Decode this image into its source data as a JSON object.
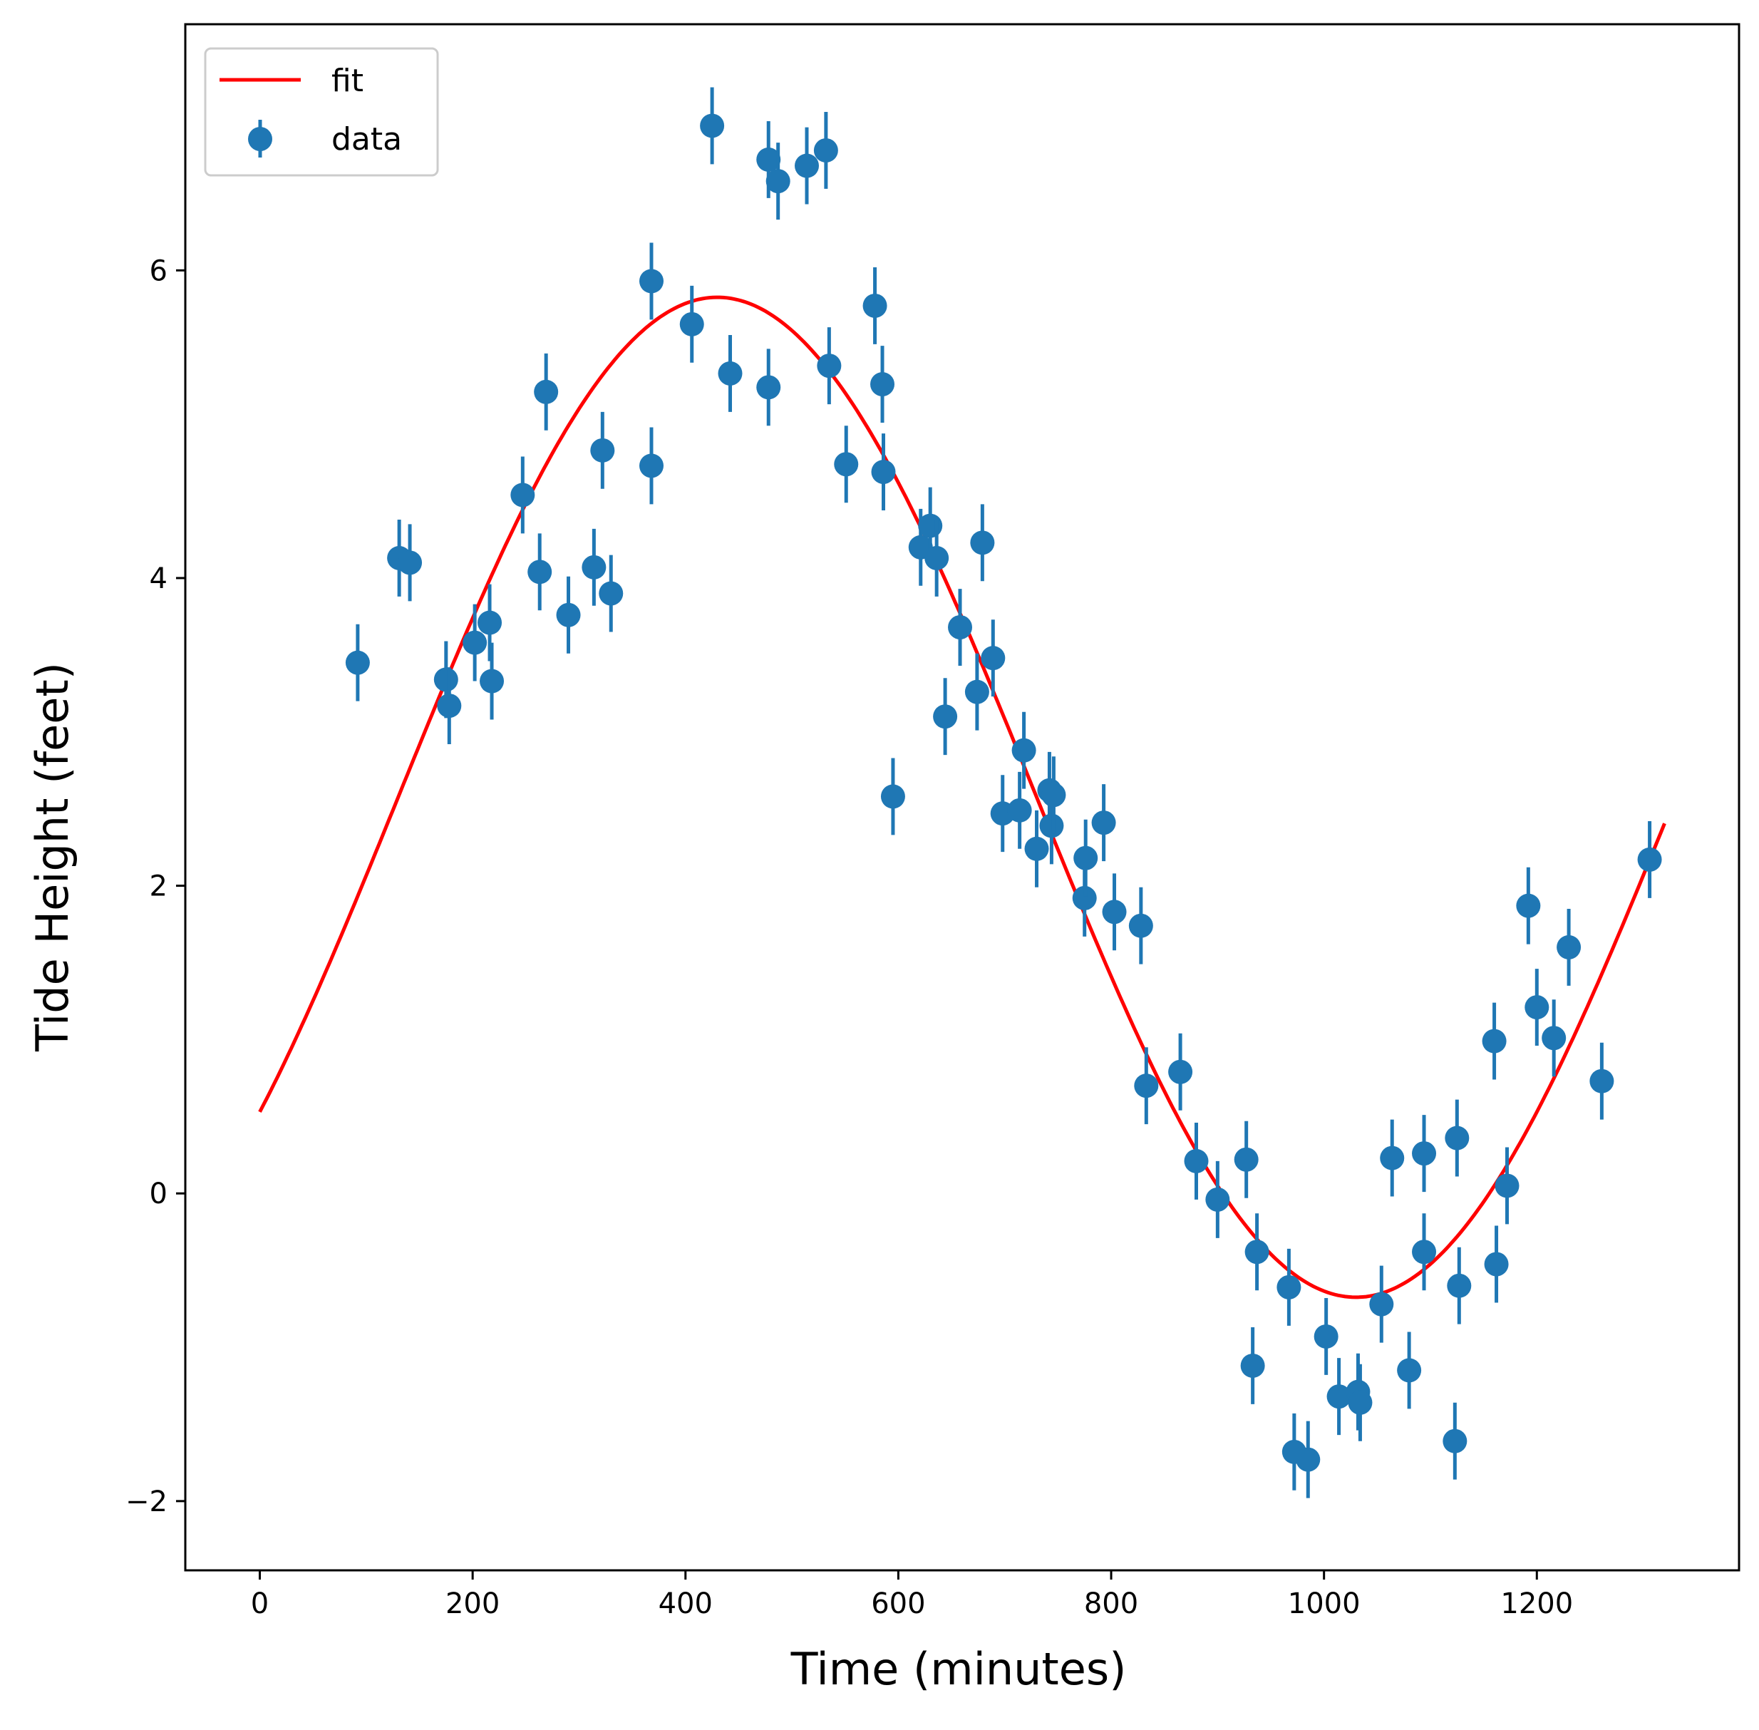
{
  "chart_data": {
    "type": "scatter",
    "xlabel": "Time (minutes)",
    "ylabel": "Tide Height (feet)",
    "xlim": [
      -70,
      1390
    ],
    "ylim": [
      -2.45,
      7.6
    ],
    "xticks": [
      0,
      200,
      400,
      600,
      800,
      1000,
      1200
    ],
    "xtick_labels": [
      "0",
      "200",
      "400",
      "600",
      "800",
      "1000",
      "1200"
    ],
    "yticks": [
      -2,
      0,
      2,
      4,
      6
    ],
    "ytick_labels": [
      "−2",
      "0",
      "2",
      "4",
      "6"
    ],
    "grid": false,
    "legend_position": "upper-left",
    "colors": {
      "data": "#1f77b4",
      "fit": "#ff0000"
    },
    "series": [
      {
        "name": "fit",
        "kind": "line",
        "model": {
          "form": "offset + amplitude * sin(2*pi*(x - phase_x)/period)",
          "offset": 2.575,
          "amplitude": 3.25,
          "period": 1200,
          "phase_x": 130
        },
        "x_range": [
          0,
          1320
        ]
      },
      {
        "name": "data",
        "kind": "errorbar",
        "error": 0.25,
        "points": [
          [
            92,
            3.45
          ],
          [
            131,
            4.13
          ],
          [
            141,
            4.1
          ],
          [
            175,
            3.34
          ],
          [
            178,
            3.17
          ],
          [
            202,
            3.58
          ],
          [
            216,
            3.71
          ],
          [
            218,
            3.33
          ],
          [
            247,
            4.54
          ],
          [
            263,
            4.04
          ],
          [
            269,
            5.21
          ],
          [
            290,
            3.76
          ],
          [
            314,
            4.07
          ],
          [
            322,
            4.83
          ],
          [
            330,
            3.9
          ],
          [
            368,
            5.93
          ],
          [
            368,
            4.73
          ],
          [
            406,
            5.65
          ],
          [
            425,
            6.94
          ],
          [
            442,
            5.33
          ],
          [
            478,
            6.72
          ],
          [
            478,
            5.24
          ],
          [
            487,
            6.58
          ],
          [
            514,
            6.68
          ],
          [
            532,
            6.78
          ],
          [
            535,
            5.38
          ],
          [
            551,
            4.74
          ],
          [
            578,
            5.77
          ],
          [
            585,
            5.26
          ],
          [
            586,
            4.69
          ],
          [
            595,
            2.58
          ],
          [
            621,
            4.2
          ],
          [
            630,
            4.34
          ],
          [
            636,
            4.13
          ],
          [
            644,
            3.1
          ],
          [
            658,
            3.68
          ],
          [
            674,
            3.26
          ],
          [
            679,
            4.23
          ],
          [
            689,
            3.48
          ],
          [
            698,
            2.47
          ],
          [
            714,
            2.49
          ],
          [
            718,
            2.88
          ],
          [
            730,
            2.24
          ],
          [
            742,
            2.62
          ],
          [
            744,
            2.39
          ],
          [
            746,
            2.59
          ],
          [
            775,
            1.92
          ],
          [
            776,
            2.18
          ],
          [
            793,
            2.41
          ],
          [
            803,
            1.83
          ],
          [
            828,
            1.74
          ],
          [
            833,
            0.7
          ],
          [
            865,
            0.79
          ],
          [
            880,
            0.21
          ],
          [
            900,
            -0.04
          ],
          [
            927,
            0.22
          ],
          [
            937,
            -0.38
          ],
          [
            933,
            -1.12
          ],
          [
            967,
            -0.61
          ],
          [
            972,
            -1.68
          ],
          [
            985,
            -1.73
          ],
          [
            1002,
            -0.93
          ],
          [
            1014,
            -1.32
          ],
          [
            1032,
            -1.29
          ],
          [
            1034,
            -1.36
          ],
          [
            1054,
            -0.72
          ],
          [
            1064,
            0.23
          ],
          [
            1080,
            -1.15
          ],
          [
            1094,
            0.26
          ],
          [
            1094,
            -0.38
          ],
          [
            1125,
            0.36
          ],
          [
            1123,
            -1.61
          ],
          [
            1127,
            -0.6
          ],
          [
            1160,
            0.99
          ],
          [
            1162,
            -0.46
          ],
          [
            1172,
            0.05
          ],
          [
            1192,
            1.87
          ],
          [
            1200,
            1.21
          ],
          [
            1216,
            1.01
          ],
          [
            1230,
            1.6
          ],
          [
            1261,
            0.73
          ],
          [
            1306,
            2.17
          ]
        ]
      }
    ]
  }
}
